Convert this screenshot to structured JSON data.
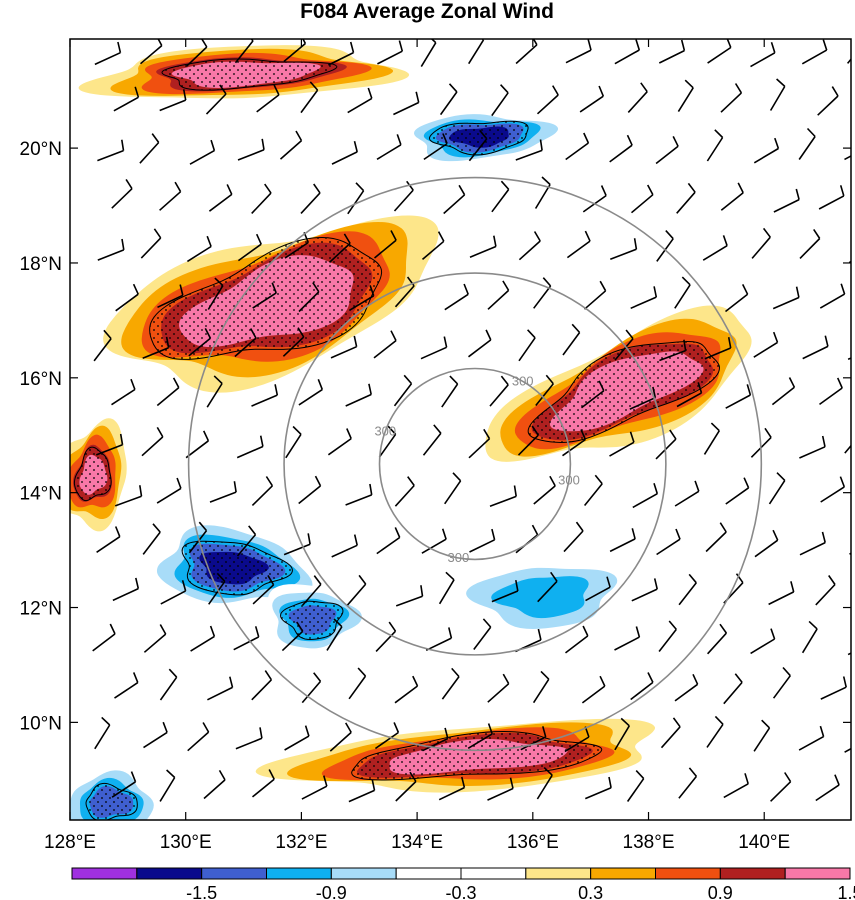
{
  "chart_data": {
    "type": "heatmap",
    "title": "F084 Average Zonal Wind",
    "x_range": [
      128,
      141.5
    ],
    "y_range": [
      8.3,
      21.9
    ],
    "x_ticks": [
      {
        "value": 128,
        "label": "128°E"
      },
      {
        "value": 130,
        "label": "130°E"
      },
      {
        "value": 132,
        "label": "132°E"
      },
      {
        "value": 134,
        "label": "134°E"
      },
      {
        "value": 136,
        "label": "136°E"
      },
      {
        "value": 138,
        "label": "138°E"
      },
      {
        "value": 140,
        "label": "140°E"
      }
    ],
    "y_ticks": [
      {
        "value": 10,
        "label": "10°N"
      },
      {
        "value": 12,
        "label": "12°N"
      },
      {
        "value": 14,
        "label": "14°N"
      },
      {
        "value": 16,
        "label": "16°N"
      },
      {
        "value": 18,
        "label": "18°N"
      },
      {
        "value": 20,
        "label": "20°N"
      }
    ],
    "colorbar": {
      "colors": [
        "#a030e0",
        "#0a0a8c",
        "#3f5fd0",
        "#0fb0f0",
        "#a8dcf8",
        "#ffffff",
        "#ffffff",
        "#fde68a",
        "#f8a800",
        "#f05010",
        "#b02020",
        "#f878a8"
      ],
      "tick_labels": [
        "-1.5",
        "-0.9",
        "-0.3",
        "0.3",
        "0.9",
        "1.5"
      ]
    },
    "contour_levels": [
      -1.8,
      -1.5,
      -1.2,
      -0.9,
      -0.6,
      -0.3,
      0.0,
      0.3,
      0.6,
      0.9,
      1.2,
      1.5,
      1.8
    ],
    "stippling": "dots over regions where |value| >= 1.2",
    "range_rings": {
      "center": [
        135.0,
        14.5
      ],
      "labeled_ring_label": "300",
      "ring_count": 3
    },
    "anomaly_features": [
      {
        "name": "northern positive band",
        "lon": 131.0,
        "lat": 21.3,
        "value": 1.5
      },
      {
        "name": "north-central negative band",
        "lon": 135.1,
        "lat": 20.2,
        "value": -1.6
      },
      {
        "name": "large western positive maximum",
        "lon": 131.5,
        "lat": 17.3,
        "value": 1.9
      },
      {
        "name": "eastern positive lobe",
        "lon": 137.6,
        "lat": 15.8,
        "value": 1.8
      },
      {
        "name": "western edge positive patch",
        "lon": 128.4,
        "lat": 14.3,
        "value": 1.4
      },
      {
        "name": "southern negative maximum",
        "lon": 130.8,
        "lat": 12.7,
        "value": -1.6
      },
      {
        "name": "southern negative center 2",
        "lon": 132.2,
        "lat": 11.8,
        "value": -1.5
      },
      {
        "name": "southeastern negative lobe",
        "lon": 136.2,
        "lat": 12.2,
        "value": -1.1
      },
      {
        "name": "southern positive band",
        "lon": 135.0,
        "lat": 9.4,
        "value": 1.7
      },
      {
        "name": "southwest corner negative",
        "lon": 128.7,
        "lat": 8.6,
        "value": -1.4
      }
    ]
  }
}
